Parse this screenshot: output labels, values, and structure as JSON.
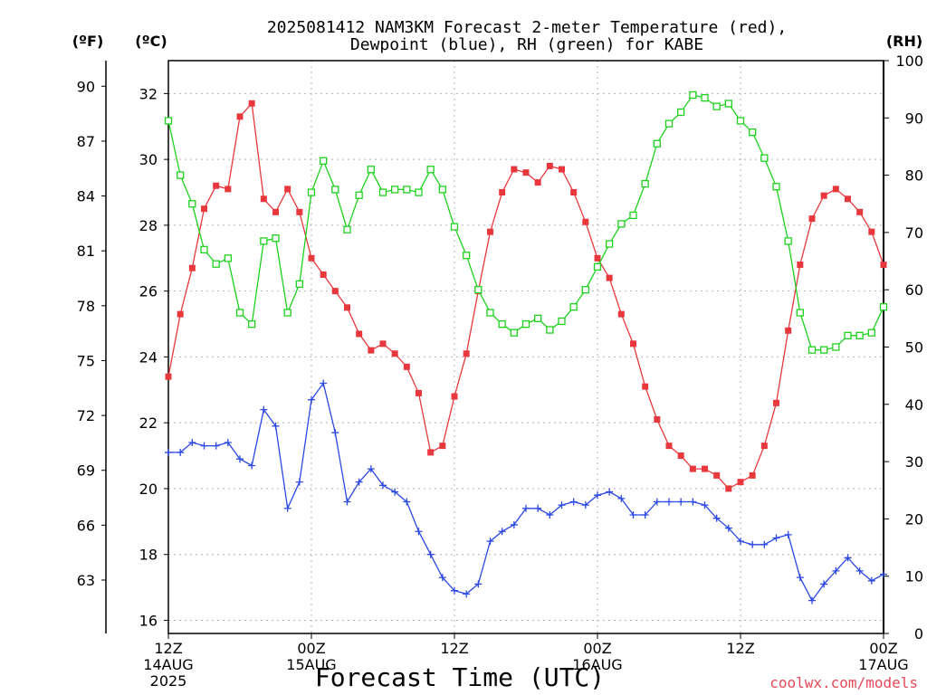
{
  "chart_data": {
    "type": "line",
    "title_lines": [
      "2025081412 NAM3KM Forecast 2-meter Temperature (red),",
      "Dewpoint (blue), RH (green) for KABE"
    ],
    "xlabel": "Forecast Time (UTC)",
    "credit": "coolwx.com/models",
    "units": {
      "f": "(ºF)",
      "c": "(ºC)",
      "rh": "(RH)"
    },
    "x_unit": "forecast hour from 2025-08-14 12Z",
    "xlim": [
      0,
      60
    ],
    "x_ticks": [
      {
        "x": 0,
        "lines": [
          "12Z",
          "14AUG",
          "2025"
        ]
      },
      {
        "x": 12,
        "lines": [
          "00Z",
          "15AUG"
        ]
      },
      {
        "x": 24,
        "lines": [
          "12Z"
        ]
      },
      {
        "x": 36,
        "lines": [
          "00Z",
          "16AUG"
        ]
      },
      {
        "x": 48,
        "lines": [
          "12Z"
        ]
      },
      {
        "x": 60,
        "lines": [
          "00Z",
          "17AUG"
        ]
      }
    ],
    "x_grid": [
      12,
      24,
      36,
      48
    ],
    "y_left_c": {
      "lim": [
        15.6,
        33.0
      ],
      "ticks": [
        16,
        18,
        20,
        22,
        24,
        26,
        28,
        30,
        32
      ]
    },
    "y_left_f": {
      "ticks": [
        63,
        66,
        69,
        72,
        75,
        78,
        81,
        84,
        87,
        90
      ]
    },
    "y_right_rh": {
      "lim": [
        0,
        100
      ],
      "ticks": [
        0,
        10,
        20,
        30,
        40,
        50,
        60,
        70,
        80,
        90,
        100
      ]
    },
    "colors": {
      "temperature": "#e8383d",
      "dewpoint": "#2b48e6",
      "rh": "#1ed11e"
    },
    "series": [
      {
        "name": "Temperature",
        "axis": "c",
        "marker": "filled-square",
        "x": [
          0,
          1,
          2,
          3,
          4,
          5,
          6,
          7,
          8,
          9,
          10,
          11,
          12,
          13,
          14,
          15,
          16,
          17,
          18,
          19,
          20,
          21,
          22,
          23,
          24,
          25,
          26,
          27,
          28,
          29,
          30,
          31,
          32,
          33,
          34,
          35,
          36,
          37,
          38,
          39,
          40,
          41,
          42,
          43,
          44,
          45,
          46,
          47,
          48,
          49,
          50,
          51,
          52,
          53,
          54,
          55,
          56,
          57,
          58,
          59,
          60
        ],
        "values": [
          23.4,
          25.3,
          26.7,
          28.5,
          29.2,
          29.1,
          31.3,
          31.7,
          28.8,
          28.4,
          29.1,
          28.4,
          27.0,
          26.5,
          26.0,
          25.5,
          24.7,
          24.2,
          24.4,
          24.1,
          23.7,
          22.9,
          21.1,
          21.3,
          22.8,
          24.1,
          26.0,
          27.8,
          29.0,
          29.7,
          29.6,
          29.3,
          29.8,
          29.7,
          29.0,
          28.1,
          27.0,
          26.4,
          25.3,
          24.4,
          23.1,
          22.1,
          21.3,
          21.0,
          20.6,
          20.6,
          20.4,
          20.0,
          20.2,
          20.4,
          21.3,
          22.6,
          24.8,
          26.8,
          28.2,
          28.9,
          29.1,
          28.8,
          28.4,
          27.8,
          26.8
        ]
      },
      {
        "name": "Dewpoint",
        "axis": "c",
        "marker": "plus",
        "x": [
          0,
          1,
          2,
          3,
          4,
          5,
          6,
          7,
          8,
          9,
          10,
          11,
          12,
          13,
          14,
          15,
          16,
          17,
          18,
          19,
          20,
          21,
          22,
          23,
          24,
          25,
          26,
          27,
          28,
          29,
          30,
          31,
          32,
          33,
          34,
          35,
          36,
          37,
          38,
          39,
          40,
          41,
          42,
          43,
          44,
          45,
          46,
          47,
          48,
          49,
          50,
          51,
          52,
          53,
          54,
          55,
          56,
          57,
          58,
          59,
          60
        ],
        "values": [
          21.1,
          21.1,
          21.4,
          21.3,
          21.3,
          21.4,
          20.9,
          20.7,
          22.4,
          21.9,
          19.4,
          20.2,
          22.7,
          23.2,
          21.7,
          19.6,
          20.2,
          20.6,
          20.1,
          19.9,
          19.6,
          18.7,
          18.0,
          17.3,
          16.9,
          16.8,
          17.1,
          18.4,
          18.7,
          18.9,
          19.4,
          19.4,
          19.2,
          19.5,
          19.6,
          19.5,
          19.8,
          19.9,
          19.7,
          19.2,
          19.2,
          19.6,
          19.6,
          19.6,
          19.6,
          19.5,
          19.1,
          18.8,
          18.4,
          18.3,
          18.3,
          18.5,
          18.6,
          17.3,
          16.6,
          17.1,
          17.5,
          17.9,
          17.5,
          17.2,
          17.4
        ]
      },
      {
        "name": "RH",
        "axis": "rh",
        "marker": "open-square",
        "x": [
          0,
          1,
          2,
          3,
          4,
          5,
          6,
          7,
          8,
          9,
          10,
          11,
          12,
          13,
          14,
          15,
          16,
          17,
          18,
          19,
          20,
          21,
          22,
          23,
          24,
          25,
          26,
          27,
          28,
          29,
          30,
          31,
          32,
          33,
          34,
          35,
          36,
          37,
          38,
          39,
          40,
          41,
          42,
          43,
          44,
          45,
          46,
          47,
          48,
          49,
          50,
          51,
          52,
          53,
          54,
          55,
          56,
          57,
          58,
          59,
          60
        ],
        "values": [
          89.5,
          80.0,
          75.0,
          67.0,
          64.5,
          65.5,
          56.0,
          54.0,
          68.5,
          69.0,
          56.0,
          61.0,
          77.0,
          82.5,
          77.5,
          70.5,
          76.5,
          81.0,
          77.0,
          77.5,
          77.5,
          77.0,
          81.0,
          77.5,
          71.0,
          66.0,
          60.0,
          56.0,
          54.0,
          52.5,
          54.0,
          55.0,
          53.0,
          54.5,
          57.0,
          60.0,
          64.0,
          68.0,
          71.5,
          73.0,
          78.5,
          85.5,
          89.0,
          91.0,
          94.0,
          93.5,
          92.0,
          92.5,
          89.5,
          87.5,
          83.0,
          78.0,
          68.5,
          56.0,
          49.5,
          49.5,
          50.0,
          52.0,
          52.0,
          52.5,
          57.0
        ]
      }
    ]
  }
}
